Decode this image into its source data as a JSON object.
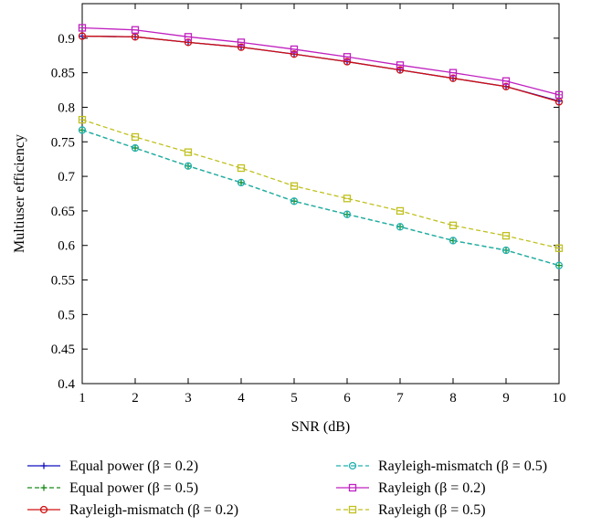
{
  "chart_data": {
    "type": "line",
    "title": "",
    "xlabel": "SNR (dB)",
    "ylabel": "Multiuser efficiency",
    "xlim": [
      1,
      10
    ],
    "ylim": [
      0.4,
      0.95
    ],
    "xticks": [
      1,
      2,
      3,
      4,
      5,
      6,
      7,
      8,
      9,
      10
    ],
    "yticks": [
      0.4,
      0.45,
      0.5,
      0.55,
      0.6,
      0.65,
      0.7,
      0.75,
      0.8,
      0.85,
      0.9
    ],
    "grid": false,
    "legend_position": "bottom",
    "x": [
      1,
      2,
      3,
      4,
      5,
      6,
      7,
      8,
      9,
      10
    ],
    "series": [
      {
        "name": "Equal power (β = 0.2)",
        "color": "#1010c0",
        "dash": "solid",
        "marker": "plus",
        "values": [
          0.903,
          0.902,
          0.894,
          0.887,
          0.877,
          0.866,
          0.854,
          0.842,
          0.83,
          0.809
        ]
      },
      {
        "name": "Equal power (β = 0.5)",
        "color": "#1a8a1a",
        "dash": "dashed",
        "marker": "plus",
        "values": [
          0.767,
          0.741,
          0.715,
          0.691,
          0.664,
          0.645,
          0.627,
          0.607,
          0.593,
          0.571
        ]
      },
      {
        "name": "Rayleigh-mismatch (β = 0.2)",
        "color": "#d01010",
        "dash": "solid",
        "marker": "circle",
        "values": [
          0.903,
          0.902,
          0.894,
          0.887,
          0.877,
          0.866,
          0.854,
          0.842,
          0.83,
          0.808
        ]
      },
      {
        "name": "Rayleigh-mismatch (β = 0.5)",
        "color": "#20b0b0",
        "dash": "dashed",
        "marker": "circle",
        "values": [
          0.767,
          0.741,
          0.715,
          0.691,
          0.664,
          0.645,
          0.627,
          0.607,
          0.593,
          0.571
        ]
      },
      {
        "name": "Rayleigh (β = 0.2)",
        "color": "#c020c0",
        "dash": "solid",
        "marker": "square",
        "values": [
          0.915,
          0.912,
          0.902,
          0.894,
          0.884,
          0.873,
          0.861,
          0.85,
          0.838,
          0.818
        ]
      },
      {
        "name": "Rayleigh (β = 0.5)",
        "color": "#c0c020",
        "dash": "dashed",
        "marker": "square",
        "values": [
          0.782,
          0.757,
          0.735,
          0.712,
          0.686,
          0.668,
          0.65,
          0.629,
          0.614,
          0.596
        ]
      }
    ]
  }
}
